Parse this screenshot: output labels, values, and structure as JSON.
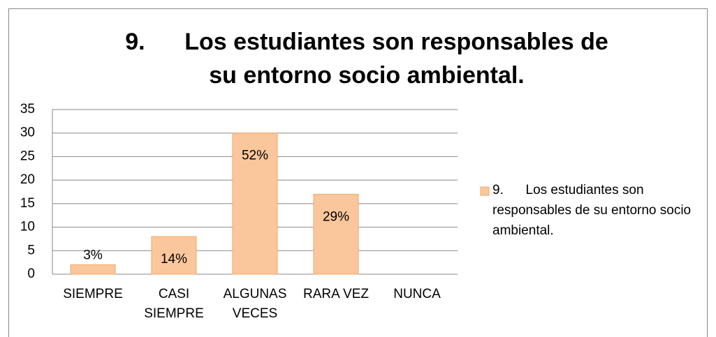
{
  "chart_data": {
    "type": "bar",
    "title": "9.      Los estudiantes son responsables de su entorno socio ambiental.",
    "categories": [
      "SIEMPRE",
      "CASI SIEMPRE",
      "ALGUNAS VECES",
      "RARA VEZ",
      "NUNCA"
    ],
    "series": [
      {
        "name": "9.      Los estudiantes son responsables de su entorno socio ambiental.",
        "color": "#fac79c",
        "values": [
          2,
          8,
          30,
          17,
          0
        ],
        "value_labels": [
          "3%",
          "14%",
          "52%",
          "29%",
          null
        ]
      }
    ],
    "ylim": [
      0,
      35
    ],
    "yticks": [
      0,
      5,
      10,
      15,
      20,
      25,
      30,
      35
    ],
    "grid": true,
    "legend": "right"
  }
}
